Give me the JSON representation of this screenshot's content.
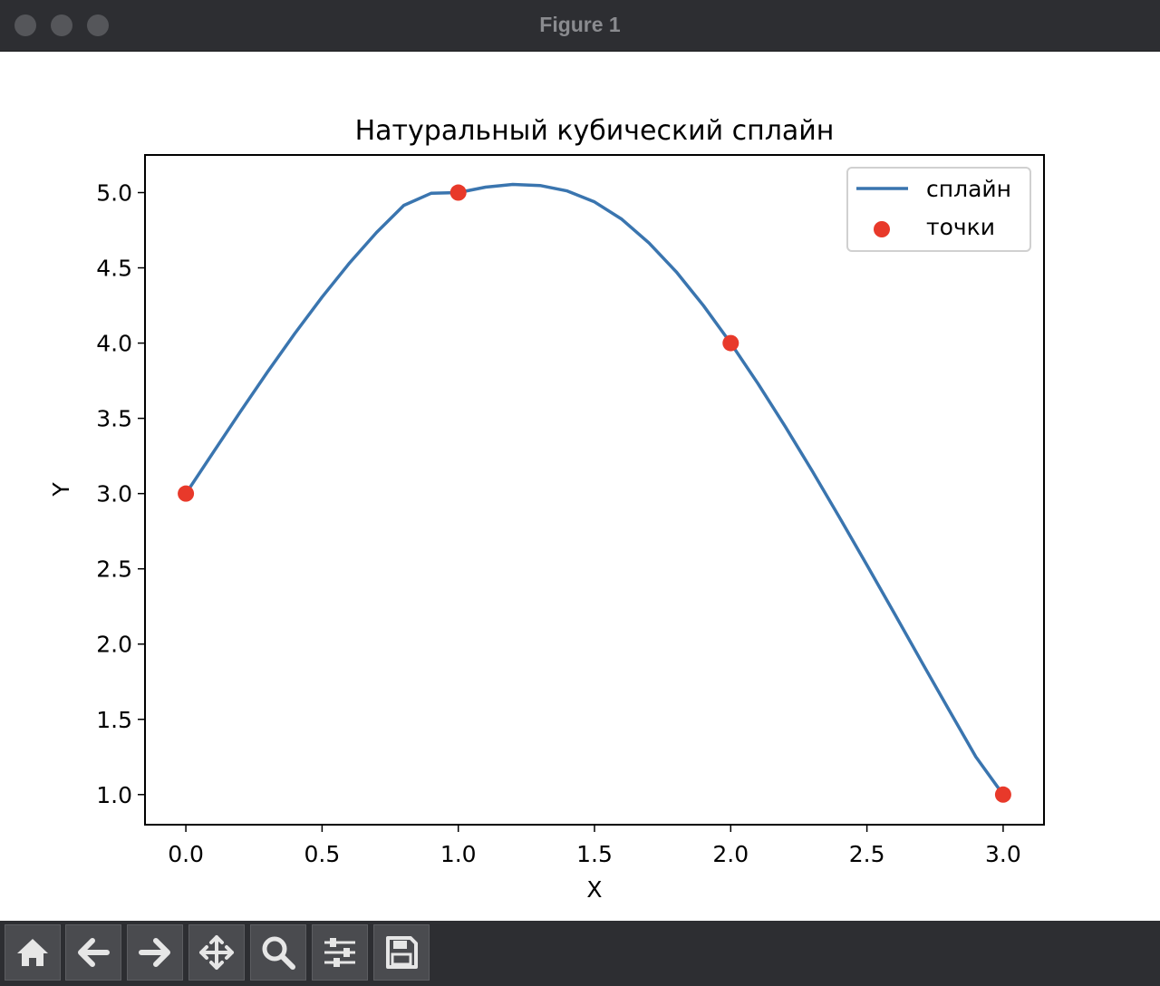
{
  "window": {
    "title": "Figure 1"
  },
  "toolbar": {
    "buttons": [
      {
        "name": "home-button",
        "icon": "home-icon"
      },
      {
        "name": "back-button",
        "icon": "arrow-left-icon"
      },
      {
        "name": "forward-button",
        "icon": "arrow-right-icon"
      },
      {
        "name": "pan-button",
        "icon": "move-icon"
      },
      {
        "name": "zoom-button",
        "icon": "magnifier-icon"
      },
      {
        "name": "configure-subplots-button",
        "icon": "sliders-icon"
      },
      {
        "name": "save-button",
        "icon": "floppy-disk-icon"
      }
    ]
  },
  "chart_data": {
    "type": "line",
    "title": "Натуральный кубический сплайн",
    "xlabel": "X",
    "ylabel": "Y",
    "xlim": [
      -0.15,
      3.15
    ],
    "ylim": [
      0.8,
      5.25
    ],
    "xticks": [
      "0.0",
      "0.5",
      "1.0",
      "1.5",
      "2.0",
      "2.5",
      "3.0"
    ],
    "yticks": [
      "1.0",
      "1.5",
      "2.0",
      "2.5",
      "3.0",
      "3.5",
      "4.0",
      "4.5",
      "5.0"
    ],
    "grid": false,
    "legend_position": "top-right",
    "series": [
      {
        "name": "сплайн",
        "kind": "line",
        "color": "#3a75af",
        "x": [
          0.0,
          0.1,
          0.2,
          0.3,
          0.4,
          0.5,
          0.6,
          0.7,
          0.8,
          0.9,
          1.0,
          1.1,
          1.2,
          1.3,
          1.4,
          1.5,
          1.6,
          1.7,
          1.8,
          1.9,
          2.0,
          2.1,
          2.2,
          2.3,
          2.4,
          2.5,
          2.6,
          2.7,
          2.8,
          2.9,
          3.0
        ],
        "y": [
          3.0,
          3.273,
          3.544,
          3.809,
          4.064,
          4.306,
          4.531,
          4.735,
          4.915,
          4.995,
          5.0,
          5.036,
          5.054,
          5.047,
          5.011,
          4.938,
          4.823,
          4.665,
          4.474,
          4.249,
          4.0,
          3.731,
          3.446,
          3.148,
          2.84,
          2.525,
          2.206,
          1.885,
          1.566,
          1.251,
          1.0
        ]
      },
      {
        "name": "точки",
        "kind": "scatter",
        "color": "#e8392a",
        "x": [
          0,
          1,
          2,
          3
        ],
        "y": [
          3,
          5,
          4,
          1
        ]
      }
    ]
  }
}
